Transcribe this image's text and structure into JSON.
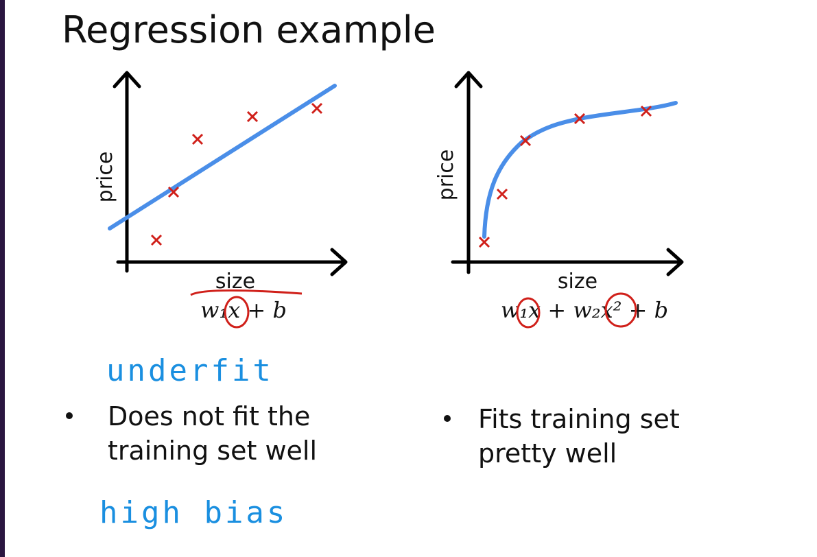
{
  "header": {
    "title": "Regression example"
  },
  "panels": [
    {
      "y_label": "price",
      "x_label": "size",
      "formula": "w₁x + b",
      "annotation": "underfit",
      "bullet": [
        "Does not fit the",
        "training set well"
      ],
      "note": "high bias"
    },
    {
      "y_label": "price",
      "x_label": "size",
      "formula": "w₁x + w₂x² + b",
      "bullet": [
        "Fits training set",
        "pretty well"
      ]
    }
  ]
}
